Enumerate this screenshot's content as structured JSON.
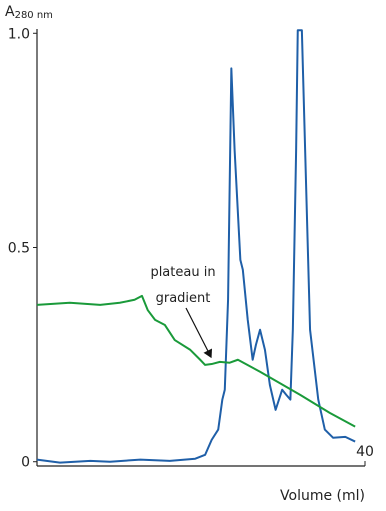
{
  "chart_data": {
    "type": "line",
    "ylabel": "A",
    "ylabel_subscript": "280 nm",
    "xlabel": "Volume (ml)",
    "annotation": [
      "plateau in",
      "gradient"
    ],
    "xlim": [
      0,
      40
    ],
    "xticks": [
      40
    ],
    "ylim": [
      -0.01,
      1.01
    ],
    "yticks": [
      0,
      0.5,
      {
        "value": 1,
        "label": "1.0"
      }
    ],
    "series": [
      {
        "color": "#1f5fa8",
        "x": [
          0,
          2.8,
          6.5,
          8.9,
          12.6,
          16.2,
          19.3,
          20.5,
          21.3,
          22.1,
          22.6,
          22.9,
          23.3,
          23.7,
          24.1,
          24.8,
          25.1,
          25.7,
          26.3,
          26.7,
          27.2,
          27.8,
          28.4,
          29.1,
          29.9,
          30.4,
          30.9,
          31.2,
          31.6,
          31.8,
          32.3,
          32.7,
          33.3,
          34.3,
          35.1,
          36.1,
          37.6,
          38.8
        ],
        "values": [
          0.005,
          -0.002,
          0.002,
          0,
          0.005,
          0.002,
          0.007,
          0.016,
          0.051,
          0.075,
          0.145,
          0.168,
          0.378,
          0.918,
          0.727,
          0.471,
          0.448,
          0.331,
          0.238,
          0.273,
          0.308,
          0.261,
          0.179,
          0.121,
          0.168,
          0.156,
          0.145,
          0.308,
          0.727,
          1.007,
          1.007,
          0.727,
          0.308,
          0.145,
          0.075,
          0.056,
          0.058,
          0.047
        ]
      },
      {
        "color": "#1a9a3a",
        "x": [
          0,
          4.0,
          7.7,
          10.1,
          11.9,
          12.8,
          13.5,
          14.4,
          15.6,
          16.8,
          18.7,
          19.9,
          20.5,
          21.3,
          22.3,
          23.5,
          24.5,
          27.2,
          32.1,
          35.7,
          38.8
        ],
        "values": [
          0.366,
          0.371,
          0.366,
          0.371,
          0.378,
          0.387,
          0.354,
          0.331,
          0.319,
          0.284,
          0.261,
          0.238,
          0.226,
          0.228,
          0.233,
          0.231,
          0.238,
          0.21,
          0.156,
          0.114,
          0.082
        ]
      }
    ]
  }
}
